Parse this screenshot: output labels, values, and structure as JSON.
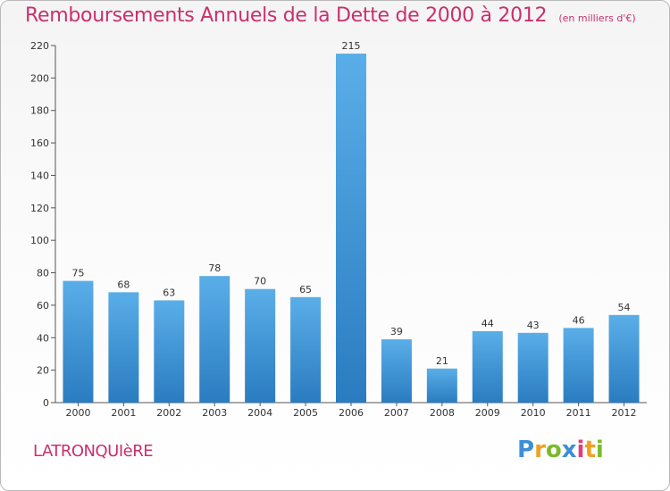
{
  "header": {
    "title": "Remboursements Annuels de la Dette de 2000 à 2012",
    "subtitle": "(en milliers d'€)"
  },
  "footer": {
    "commune": "LATRONQUIèRE",
    "logo_text": "Proxiti"
  },
  "colors": {
    "bar_top": "#5aaee8",
    "bar_bottom": "#2a7cc0",
    "title": "#c8306d"
  },
  "chart_data": {
    "type": "bar",
    "categories": [
      "2000",
      "2001",
      "2002",
      "2003",
      "2004",
      "2005",
      "2006",
      "2007",
      "2008",
      "2009",
      "2010",
      "2011",
      "2012"
    ],
    "values": [
      75,
      68,
      63,
      78,
      70,
      65,
      215,
      39,
      21,
      44,
      43,
      46,
      54
    ],
    "title": "Remboursements Annuels de la Dette de 2000 à 2012",
    "xlabel": "",
    "ylabel": "",
    "ylim": [
      0,
      220
    ],
    "yticks": [
      0,
      20,
      40,
      60,
      80,
      100,
      120,
      140,
      160,
      180,
      200,
      220
    ],
    "grid": false,
    "data_labels": true
  }
}
